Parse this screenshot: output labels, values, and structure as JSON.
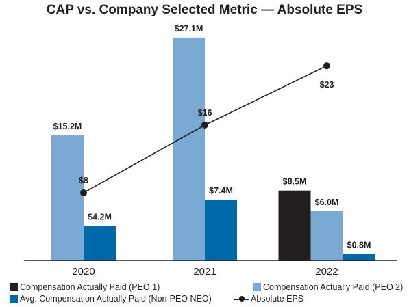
{
  "chart_data": {
    "type": "bar",
    "title": "CAP vs. Company Selected Metric — Absolute EPS",
    "categories": [
      "2020",
      "2021",
      "2022"
    ],
    "series": [
      {
        "name": "Compensation Actually Paid (PEO 1)",
        "kind": "bar",
        "color": "#231f20",
        "values": [
          null,
          null,
          8.5
        ],
        "labels": [
          null,
          null,
          "$8.5M"
        ]
      },
      {
        "name": "Compensation Actually Paid (PEO 2)",
        "kind": "bar",
        "color": "#7aa9d4",
        "values": [
          15.2,
          27.1,
          6.0
        ],
        "labels": [
          "$15.2M",
          "$27.1M",
          "$6.0M"
        ]
      },
      {
        "name": "Avg. Compensation Actually Paid (Non-PEO NEO)",
        "kind": "bar",
        "color": "#0069aa",
        "values": [
          4.2,
          7.4,
          0.8
        ],
        "labels": [
          "$4.2M",
          "$7.4M",
          "$0.8M"
        ]
      },
      {
        "name": "Absolute EPS",
        "kind": "line",
        "color": "#231f20",
        "values": [
          8,
          16,
          23
        ],
        "labels": [
          "$8",
          "$16",
          "$23"
        ]
      }
    ],
    "bar_ylim": [
      0,
      28.5
    ],
    "line_ylim": [
      0,
      27.7
    ],
    "legend_position": "bottom",
    "grid": false
  }
}
